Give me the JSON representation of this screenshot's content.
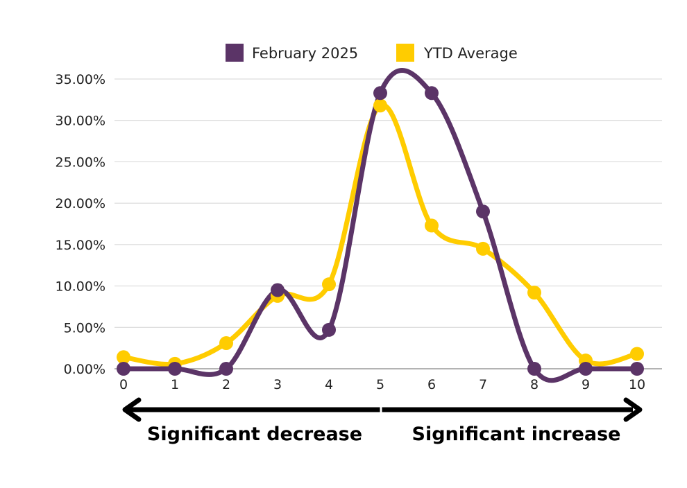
{
  "chart_data": {
    "type": "line",
    "categories": [
      "0",
      "1",
      "2",
      "3",
      "4",
      "5",
      "6",
      "7",
      "8",
      "9",
      "10"
    ],
    "x": [
      0,
      1,
      2,
      3,
      4,
      5,
      6,
      7,
      8,
      9,
      10
    ],
    "series": [
      {
        "name": "February 2025",
        "color": "#5b3467",
        "values": [
          0.0,
          0.0,
          0.0,
          9.5,
          4.7,
          33.3,
          33.3,
          19.0,
          0.0,
          0.0,
          0.0
        ]
      },
      {
        "name": "YTD Average",
        "color": "#ffcc00",
        "values": [
          1.4,
          0.6,
          3.1,
          8.8,
          10.2,
          31.8,
          17.3,
          14.5,
          9.2,
          1.0,
          1.8
        ]
      }
    ],
    "ylim": [
      0,
      35
    ],
    "yticks": [
      "0.00%",
      "5.00%",
      "10.00%",
      "15.00%",
      "20.00%",
      "25.00%",
      "30.00%",
      "35.00%"
    ],
    "ytick_values": [
      0,
      5,
      10,
      15,
      20,
      25,
      30,
      35
    ],
    "grid": true,
    "legend_position": "top",
    "annotations": {
      "left": "Significant decrease",
      "right": "Significant increase"
    }
  }
}
